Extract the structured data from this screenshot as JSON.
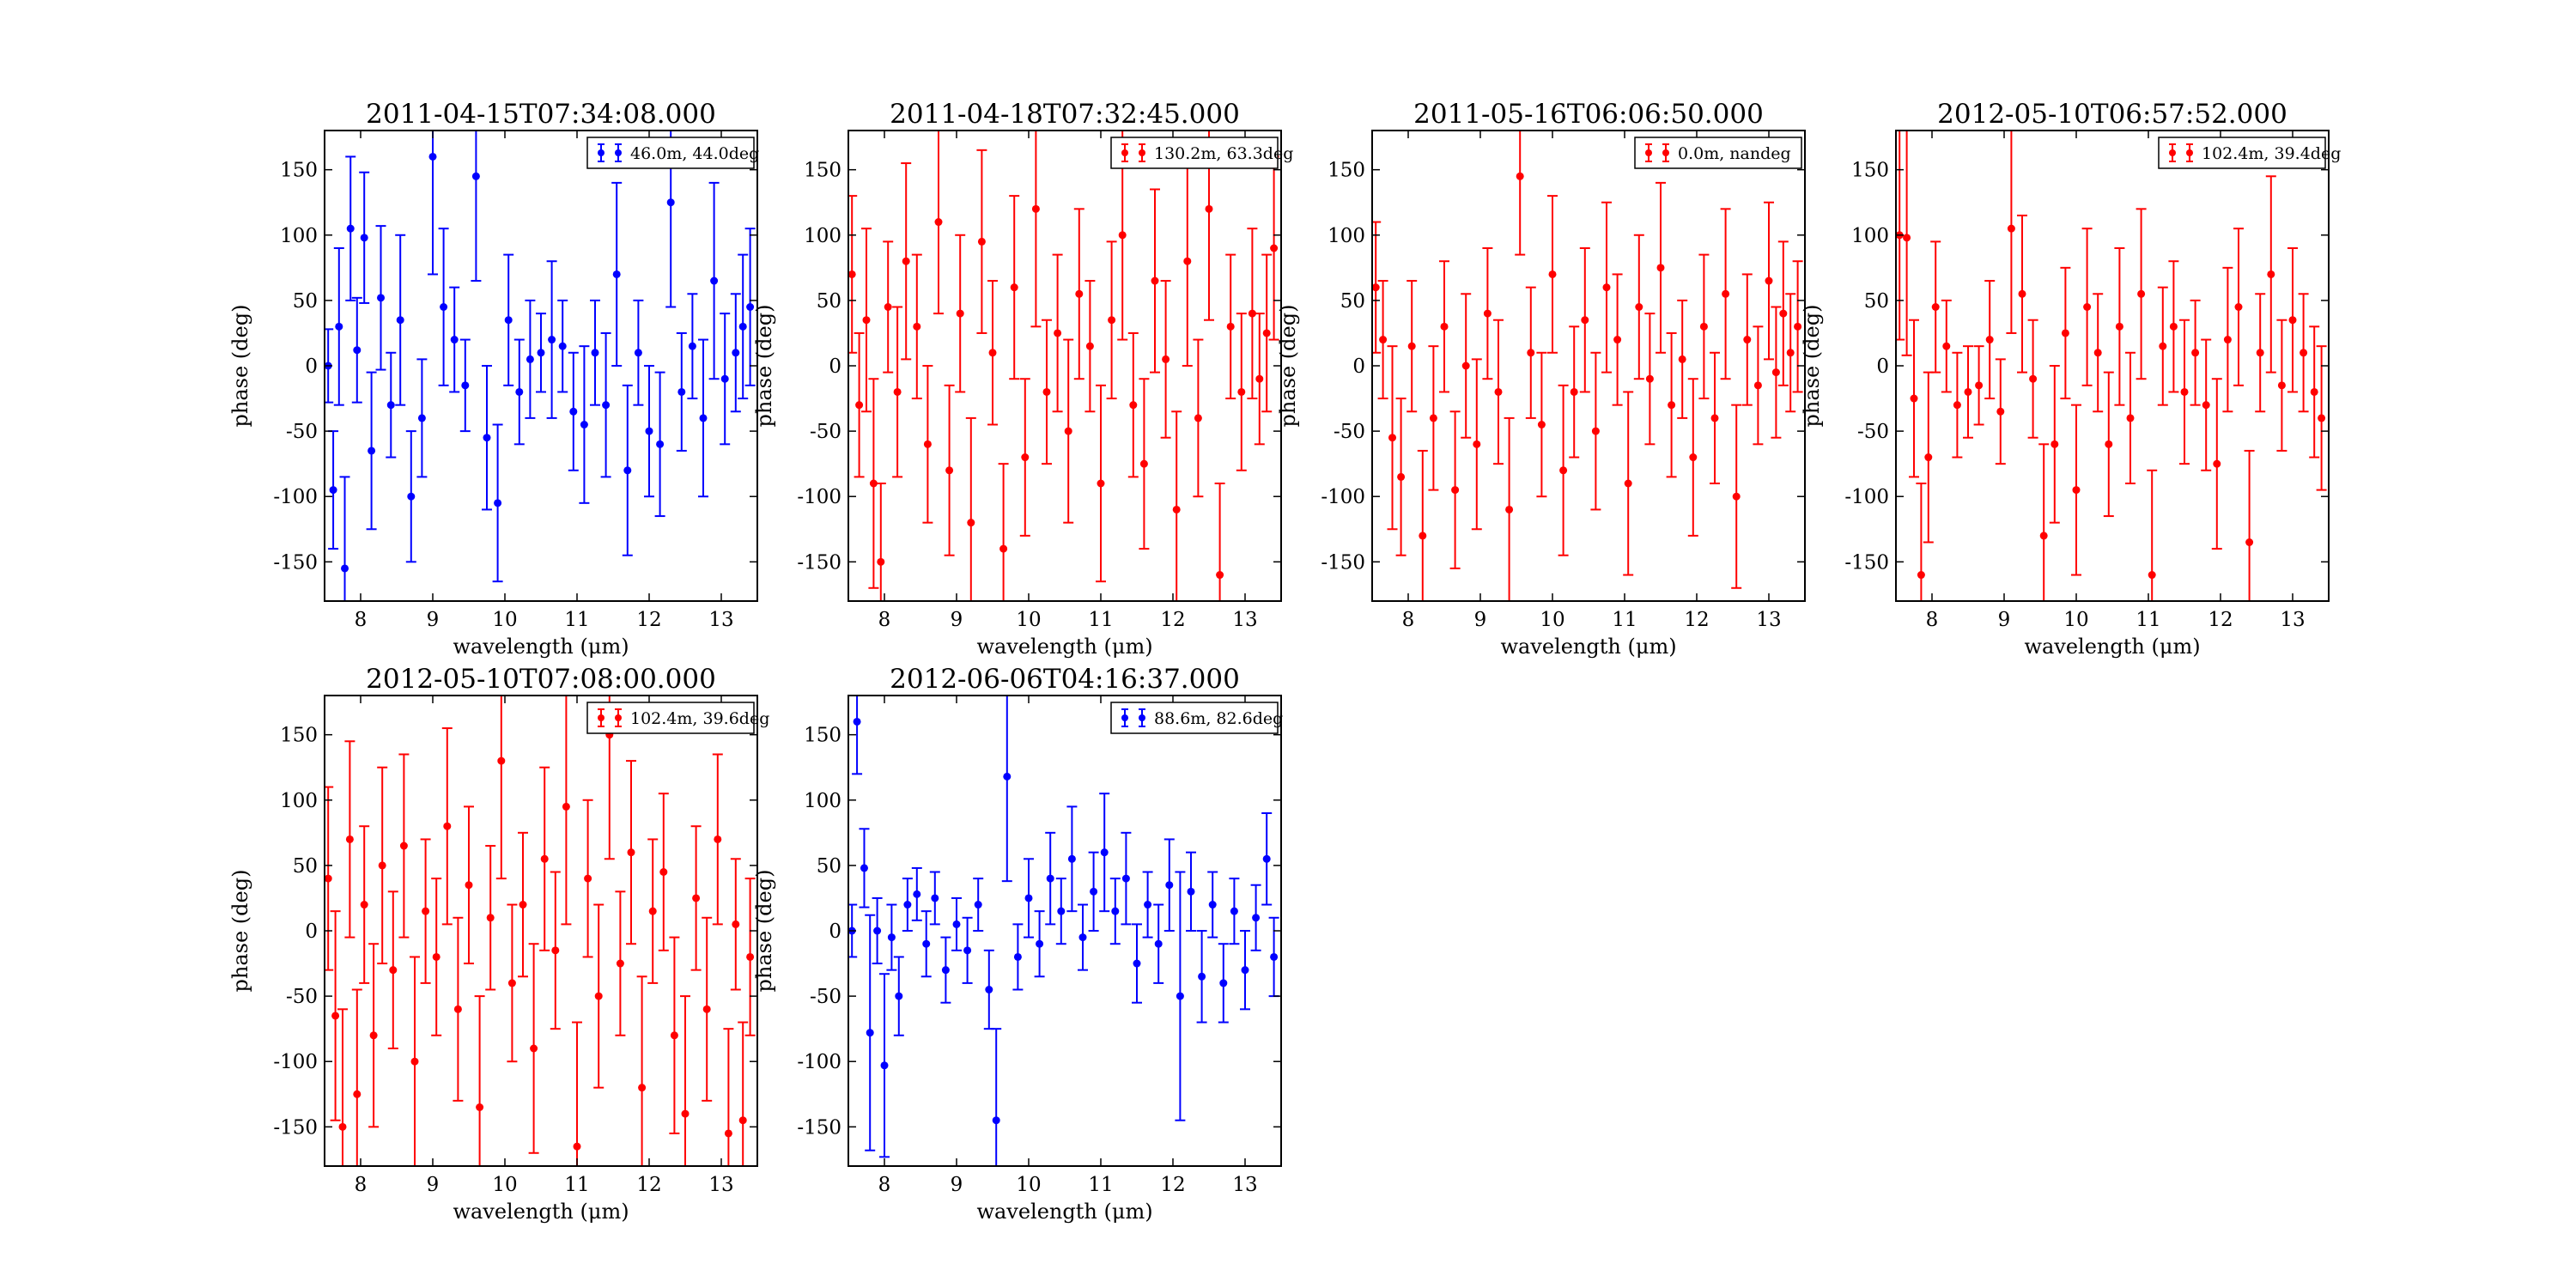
{
  "figure": {
    "background": "#ffffff"
  },
  "colors": {
    "blue": "#0000ff",
    "red": "#ff0000"
  },
  "chart_data": [
    {
      "type": "scatter",
      "title": "2011-04-15T07:34:08.000",
      "xlabel": "wavelength (μm)",
      "ylabel": "phase (deg)",
      "xlim": [
        7.5,
        13.5
      ],
      "ylim": [
        -180,
        180
      ],
      "xticks": [
        8,
        9,
        10,
        11,
        12,
        13
      ],
      "yticks": [
        -150,
        -100,
        -50,
        0,
        50,
        100,
        150
      ],
      "grid": false,
      "legend": {
        "placement": "top-right"
      },
      "series": [
        {
          "name": "46.0m, 44.0deg",
          "color": "#0000ff",
          "x": [
            7.55,
            7.62,
            7.7,
            7.78,
            7.86,
            7.95,
            8.05,
            8.15,
            8.28,
            8.42,
            8.55,
            8.7,
            8.85,
            9.0,
            9.15,
            9.3,
            9.45,
            9.6,
            9.75,
            9.9,
            10.05,
            10.2,
            10.35,
            10.5,
            10.65,
            10.8,
            10.95,
            11.1,
            11.25,
            11.4,
            11.55,
            11.7,
            11.85,
            12.0,
            12.15,
            12.3,
            12.45,
            12.6,
            12.75,
            12.9,
            13.05,
            13.2,
            13.3,
            13.4
          ],
          "y": [
            0,
            -95,
            30,
            -155,
            105,
            12,
            98,
            -65,
            52,
            -30,
            35,
            -100,
            -40,
            160,
            45,
            20,
            -15,
            145,
            -55,
            -105,
            35,
            -20,
            5,
            10,
            20,
            15,
            -35,
            -45,
            10,
            -30,
            70,
            -80,
            10,
            -50,
            -60,
            125,
            -20,
            15,
            -40,
            65,
            -10,
            10,
            30,
            45
          ],
          "err": [
            28,
            45,
            60,
            70,
            55,
            40,
            50,
            60,
            55,
            40,
            65,
            50,
            45,
            90,
            60,
            40,
            35,
            80,
            55,
            60,
            50,
            40,
            45,
            30,
            60,
            35,
            45,
            60,
            40,
            55,
            70,
            65,
            40,
            50,
            55,
            80,
            45,
            40,
            60,
            75,
            50,
            45,
            55,
            60
          ]
        }
      ]
    },
    {
      "type": "scatter",
      "title": "2011-04-18T07:32:45.000",
      "xlabel": "wavelength (μm)",
      "ylabel": "phase (deg)",
      "xlim": [
        7.5,
        13.5
      ],
      "ylim": [
        -180,
        180
      ],
      "xticks": [
        8,
        9,
        10,
        11,
        12,
        13
      ],
      "yticks": [
        -150,
        -100,
        -50,
        0,
        50,
        100,
        150
      ],
      "grid": false,
      "legend": {
        "placement": "top-right"
      },
      "series": [
        {
          "name": "130.2m, 63.3deg",
          "color": "#ff0000",
          "x": [
            7.55,
            7.65,
            7.75,
            7.85,
            7.95,
            8.05,
            8.18,
            8.3,
            8.45,
            8.6,
            8.75,
            8.9,
            9.05,
            9.2,
            9.35,
            9.5,
            9.65,
            9.8,
            9.95,
            10.1,
            10.25,
            10.4,
            10.55,
            10.7,
            10.85,
            11.0,
            11.15,
            11.3,
            11.45,
            11.6,
            11.75,
            11.9,
            12.05,
            12.2,
            12.35,
            12.5,
            12.65,
            12.8,
            12.95,
            13.1,
            13.2,
            13.3,
            13.4
          ],
          "y": [
            70,
            -30,
            35,
            -90,
            -150,
            45,
            -20,
            80,
            30,
            -60,
            110,
            -80,
            40,
            -120,
            95,
            10,
            -140,
            60,
            -70,
            120,
            -20,
            25,
            -50,
            55,
            15,
            -90,
            35,
            100,
            -30,
            -75,
            65,
            5,
            -110,
            80,
            -40,
            120,
            -160,
            30,
            -20,
            40,
            -10,
            25,
            90
          ],
          "err": [
            60,
            55,
            70,
            80,
            60,
            50,
            65,
            75,
            55,
            60,
            70,
            65,
            60,
            80,
            70,
            55,
            65,
            70,
            60,
            90,
            55,
            60,
            70,
            65,
            50,
            75,
            60,
            80,
            55,
            65,
            70,
            60,
            75,
            80,
            60,
            85,
            70,
            55,
            60,
            65,
            50,
            60,
            70
          ]
        }
      ]
    },
    {
      "type": "scatter",
      "title": "2011-05-16T06:06:50.000",
      "xlabel": "wavelength (μm)",
      "ylabel": "phase (deg)",
      "xlim": [
        7.5,
        13.5
      ],
      "ylim": [
        -180,
        180
      ],
      "xticks": [
        8,
        9,
        10,
        11,
        12,
        13
      ],
      "yticks": [
        -150,
        -100,
        -50,
        0,
        50,
        100,
        150
      ],
      "grid": false,
      "legend": {
        "placement": "top-right"
      },
      "series": [
        {
          "name": "0.0m, nandeg",
          "color": "#ff0000",
          "x": [
            7.55,
            7.65,
            7.78,
            7.9,
            8.05,
            8.2,
            8.35,
            8.5,
            8.65,
            8.8,
            8.95,
            9.1,
            9.25,
            9.4,
            9.55,
            9.7,
            9.85,
            10.0,
            10.15,
            10.3,
            10.45,
            10.6,
            10.75,
            10.9,
            11.05,
            11.2,
            11.35,
            11.5,
            11.65,
            11.8,
            11.95,
            12.1,
            12.25,
            12.4,
            12.55,
            12.7,
            12.85,
            13.0,
            13.1,
            13.2,
            13.3,
            13.4
          ],
          "y": [
            60,
            20,
            -55,
            -85,
            15,
            -130,
            -40,
            30,
            -95,
            0,
            -60,
            40,
            -20,
            -110,
            145,
            10,
            -45,
            70,
            -80,
            -20,
            35,
            -50,
            60,
            20,
            -90,
            45,
            -10,
            75,
            -30,
            5,
            -70,
            30,
            -40,
            55,
            -100,
            20,
            -15,
            65,
            -5,
            40,
            10,
            30
          ],
          "err": [
            50,
            45,
            70,
            60,
            50,
            65,
            55,
            50,
            60,
            55,
            65,
            50,
            55,
            70,
            60,
            50,
            55,
            60,
            65,
            50,
            55,
            60,
            65,
            50,
            70,
            55,
            50,
            65,
            55,
            45,
            60,
            55,
            50,
            65,
            70,
            50,
            45,
            60,
            50,
            55,
            45,
            50
          ]
        }
      ]
    },
    {
      "type": "scatter",
      "title": "2012-05-10T06:57:52.000",
      "xlabel": "wavelength (μm)",
      "ylabel": "phase (deg)",
      "xlim": [
        7.5,
        13.5
      ],
      "ylim": [
        -180,
        180
      ],
      "xticks": [
        8,
        9,
        10,
        11,
        12,
        13
      ],
      "yticks": [
        -150,
        -100,
        -50,
        0,
        50,
        100,
        150
      ],
      "grid": false,
      "legend": {
        "placement": "top-right"
      },
      "series": [
        {
          "name": "102.4m, 39.4deg",
          "color": "#ff0000",
          "x": [
            7.55,
            7.65,
            7.75,
            7.85,
            7.95,
            8.05,
            8.2,
            8.35,
            8.5,
            8.65,
            8.8,
            8.95,
            9.1,
            9.25,
            9.4,
            9.55,
            9.7,
            9.85,
            10.0,
            10.15,
            10.3,
            10.45,
            10.6,
            10.75,
            10.9,
            11.05,
            11.2,
            11.35,
            11.5,
            11.65,
            11.8,
            11.95,
            12.1,
            12.25,
            12.4,
            12.55,
            12.7,
            12.85,
            13.0,
            13.15,
            13.3,
            13.4
          ],
          "y": [
            100,
            98,
            -25,
            -160,
            -70,
            45,
            15,
            -30,
            -20,
            -15,
            20,
            -35,
            105,
            55,
            -10,
            -130,
            -60,
            25,
            -95,
            45,
            10,
            -60,
            30,
            -40,
            55,
            -160,
            15,
            30,
            -20,
            10,
            -30,
            -75,
            20,
            45,
            -135,
            10,
            70,
            -15,
            35,
            10,
            -20,
            -40
          ],
          "err": [
            80,
            90,
            60,
            70,
            65,
            50,
            35,
            40,
            35,
            30,
            45,
            40,
            80,
            60,
            45,
            70,
            60,
            50,
            65,
            60,
            45,
            55,
            60,
            50,
            65,
            80,
            45,
            50,
            55,
            40,
            50,
            65,
            55,
            60,
            70,
            45,
            75,
            50,
            55,
            45,
            50,
            55
          ]
        }
      ]
    },
    {
      "type": "scatter",
      "title": "2012-05-10T07:08:00.000",
      "xlabel": "wavelength (μm)",
      "ylabel": "phase (deg)",
      "xlim": [
        7.5,
        13.5
      ],
      "ylim": [
        -180,
        180
      ],
      "xticks": [
        8,
        9,
        10,
        11,
        12,
        13
      ],
      "yticks": [
        -150,
        -100,
        -50,
        0,
        50,
        100,
        150
      ],
      "grid": false,
      "legend": {
        "placement": "top-right"
      },
      "series": [
        {
          "name": "102.4m, 39.6deg",
          "color": "#ff0000",
          "x": [
            7.55,
            7.65,
            7.75,
            7.85,
            7.95,
            8.05,
            8.18,
            8.3,
            8.45,
            8.6,
            8.75,
            8.9,
            9.05,
            9.2,
            9.35,
            9.5,
            9.65,
            9.8,
            9.95,
            10.1,
            10.25,
            10.4,
            10.55,
            10.7,
            10.85,
            11.0,
            11.15,
            11.3,
            11.45,
            11.6,
            11.75,
            11.9,
            12.05,
            12.2,
            12.35,
            12.5,
            12.65,
            12.8,
            12.95,
            13.1,
            13.2,
            13.3,
            13.4
          ],
          "y": [
            40,
            -65,
            -150,
            70,
            -125,
            20,
            -80,
            50,
            -30,
            65,
            -100,
            15,
            -20,
            80,
            -60,
            35,
            -135,
            10,
            130,
            -40,
            20,
            -90,
            55,
            -15,
            95,
            -165,
            40,
            -50,
            150,
            -25,
            60,
            -120,
            15,
            45,
            -80,
            -140,
            25,
            -60,
            70,
            -155,
            5,
            -145,
            -20
          ],
          "err": [
            70,
            80,
            90,
            75,
            80,
            60,
            70,
            75,
            60,
            70,
            80,
            55,
            60,
            75,
            70,
            60,
            85,
            55,
            90,
            60,
            55,
            80,
            70,
            60,
            90,
            95,
            60,
            70,
            95,
            55,
            70,
            85,
            55,
            60,
            75,
            90,
            55,
            70,
            65,
            80,
            50,
            75,
            60
          ]
        }
      ]
    },
    {
      "type": "scatter",
      "title": "2012-06-06T04:16:37.000",
      "xlabel": "wavelength (μm)",
      "ylabel": "phase (deg)",
      "xlim": [
        7.5,
        13.5
      ],
      "ylim": [
        -180,
        180
      ],
      "xticks": [
        8,
        9,
        10,
        11,
        12,
        13
      ],
      "yticks": [
        -150,
        -100,
        -50,
        0,
        50,
        100,
        150
      ],
      "grid": false,
      "legend": {
        "placement": "top-right"
      },
      "series": [
        {
          "name": "88.6m, 82.6deg",
          "color": "#0000ff",
          "x": [
            7.55,
            7.62,
            7.72,
            7.8,
            7.9,
            8.0,
            8.1,
            8.2,
            8.32,
            8.45,
            8.58,
            8.7,
            8.85,
            9.0,
            9.15,
            9.3,
            9.45,
            9.55,
            9.7,
            9.85,
            10.0,
            10.15,
            10.3,
            10.45,
            10.6,
            10.75,
            10.9,
            11.05,
            11.2,
            11.35,
            11.5,
            11.65,
            11.8,
            11.95,
            12.1,
            12.25,
            12.4,
            12.55,
            12.7,
            12.85,
            13.0,
            13.15,
            13.3,
            13.4
          ],
          "y": [
            0,
            160,
            48,
            -78,
            0,
            -103,
            -5,
            -50,
            20,
            28,
            -10,
            25,
            -30,
            5,
            -15,
            20,
            -45,
            -145,
            118,
            -20,
            25,
            -10,
            40,
            15,
            55,
            -5,
            30,
            60,
            15,
            40,
            -25,
            20,
            -10,
            35,
            -50,
            30,
            -35,
            20,
            -40,
            15,
            -30,
            10,
            55,
            -20
          ],
          "err": [
            20,
            40,
            30,
            90,
            25,
            70,
            25,
            30,
            20,
            20,
            25,
            20,
            25,
            20,
            25,
            20,
            30,
            70,
            80,
            25,
            30,
            25,
            35,
            25,
            40,
            25,
            30,
            45,
            25,
            35,
            30,
            25,
            30,
            35,
            95,
            30,
            35,
            25,
            30,
            25,
            30,
            25,
            35,
            30
          ]
        }
      ]
    }
  ]
}
